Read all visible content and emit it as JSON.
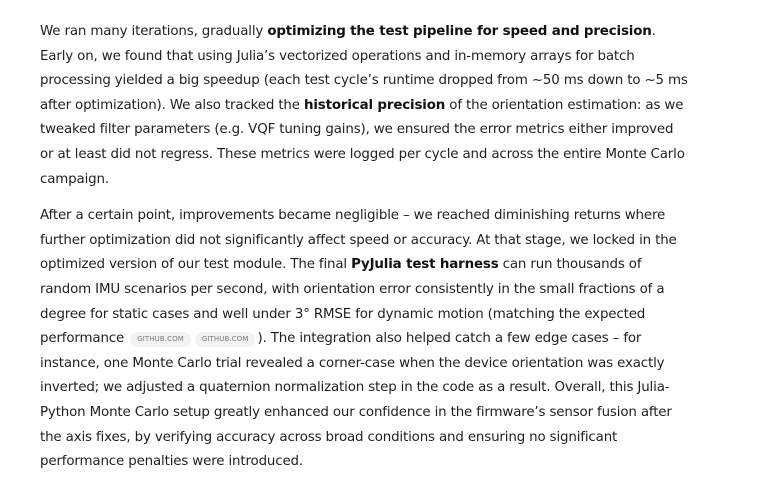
{
  "paragraph1": {
    "t1": "We ran many iterations, gradually ",
    "b1": "optimizing the test pipeline for speed and precision",
    "t2": ". Early on, we found that using Julia’s vectorized operations and in-memory arrays for batch processing yielded a big speedup (each test cycle’s runtime dropped from ~50 ms down to ~5 ms after optimization). We also tracked the ",
    "b2": "historical precision",
    "t3": " of the orientation estimation: as we tweaked filter parameters (e.g. VQF tuning gains), we ensured the error metrics either improved or at least did not regress. These metrics were logged per cycle and across the entire Monte Carlo campaign."
  },
  "paragraph2": {
    "t1": "After a certain point, improvements became negligible – we reached diminishing returns where further optimization did not significantly affect speed or accuracy. At that stage, we locked in the optimized version of our test module. The final ",
    "b1": "PyJulia test harness",
    "t2": " can run thousands of random IMU scenarios per second, with orientation error consistently in the small fractions of a degree for static cases and well under 3° RMSE for dynamic motion (matching the expected performance ",
    "citations": [
      "GITHUB.COM",
      "GITHUB.COM"
    ],
    "t3": "). The integration also helped catch a few edge cases – for instance, one Monte Carlo trial revealed a corner-case when the device orientation was exactly inverted; we adjusted a quaternion normalization step in the code as a result. Overall, this Julia-Python Monte Carlo setup greatly enhanced our confidence in the firmware’s sensor fusion after the axis fixes, by verifying accuracy across broad conditions and ensuring no significant performance penalties were introduced."
  }
}
